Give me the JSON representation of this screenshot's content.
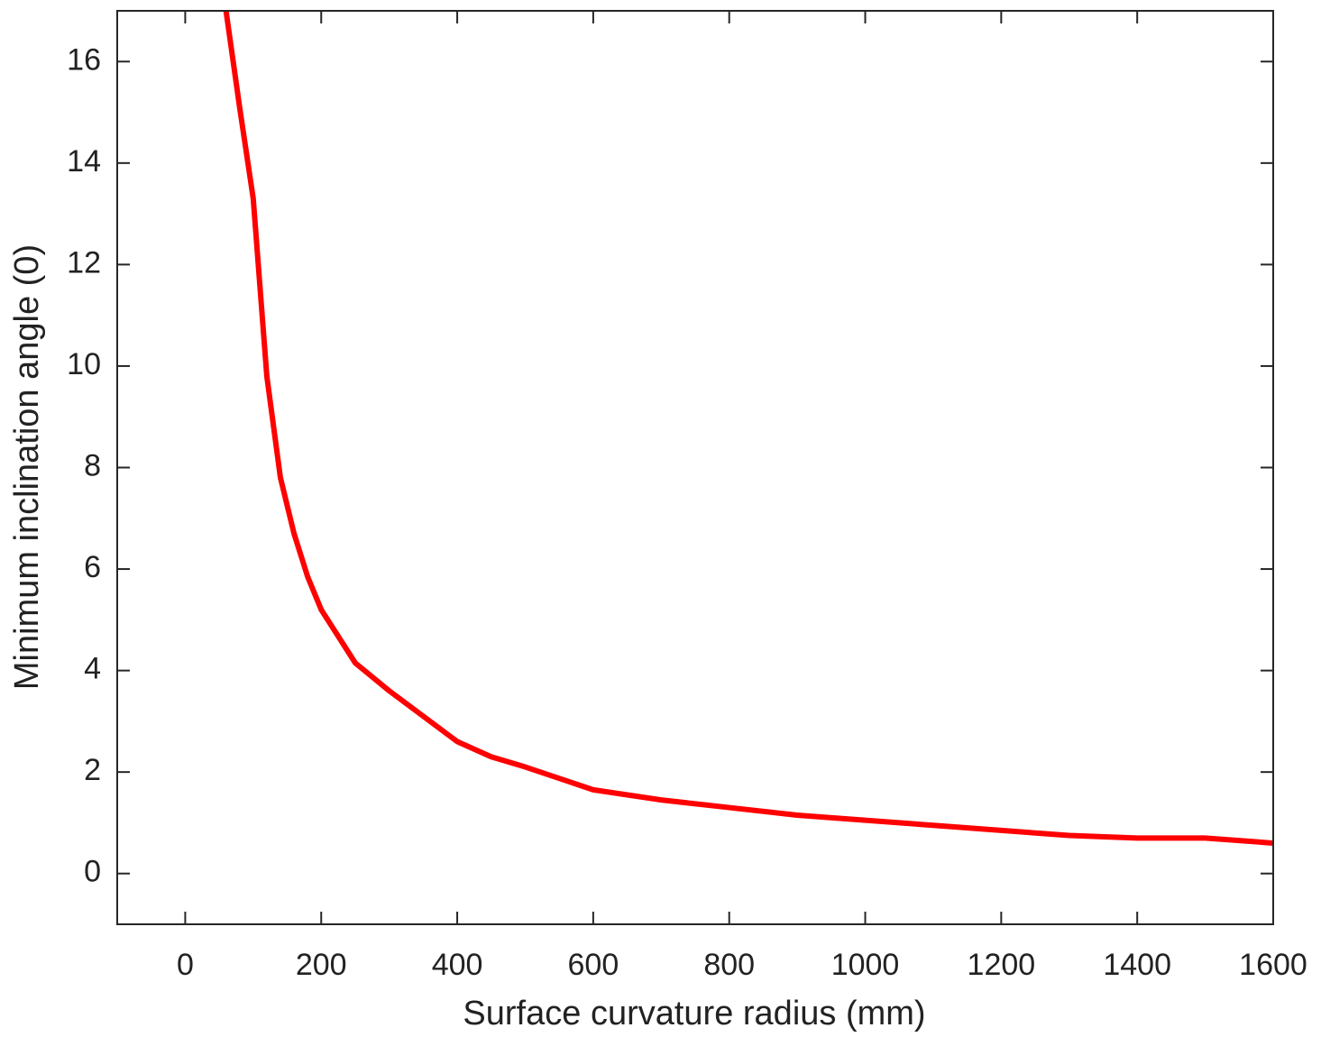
{
  "chart_data": {
    "type": "line",
    "x_label": "Surface curvature radius (mm)",
    "y_label": "Minimum inclination angle (0)",
    "x": [
      60,
      80,
      100,
      120,
      140,
      160,
      180,
      200,
      250,
      300,
      350,
      400,
      450,
      500,
      600,
      700,
      800,
      900,
      1000,
      1100,
      1200,
      1300,
      1400,
      1500,
      1600
    ],
    "series": [
      {
        "color": "#ff0000",
        "values": [
          17,
          15.1,
          13.3,
          9.8,
          7.8,
          6.7,
          5.85,
          5.2,
          4.15,
          3.6,
          3.1,
          2.6,
          2.3,
          2.1,
          1.65,
          1.45,
          1.3,
          1.15,
          1.05,
          0.95,
          0.85,
          0.75,
          0.7,
          0.7,
          0.6
        ]
      }
    ],
    "xlim": [
      -100,
      1600
    ],
    "ylim": [
      -1,
      17
    ],
    "xticks": [
      0,
      200,
      400,
      600,
      800,
      1000,
      1200,
      1400,
      1600
    ],
    "yticks": [
      0,
      2,
      4,
      6,
      8,
      10,
      12,
      14,
      16
    ],
    "grid": false
  }
}
